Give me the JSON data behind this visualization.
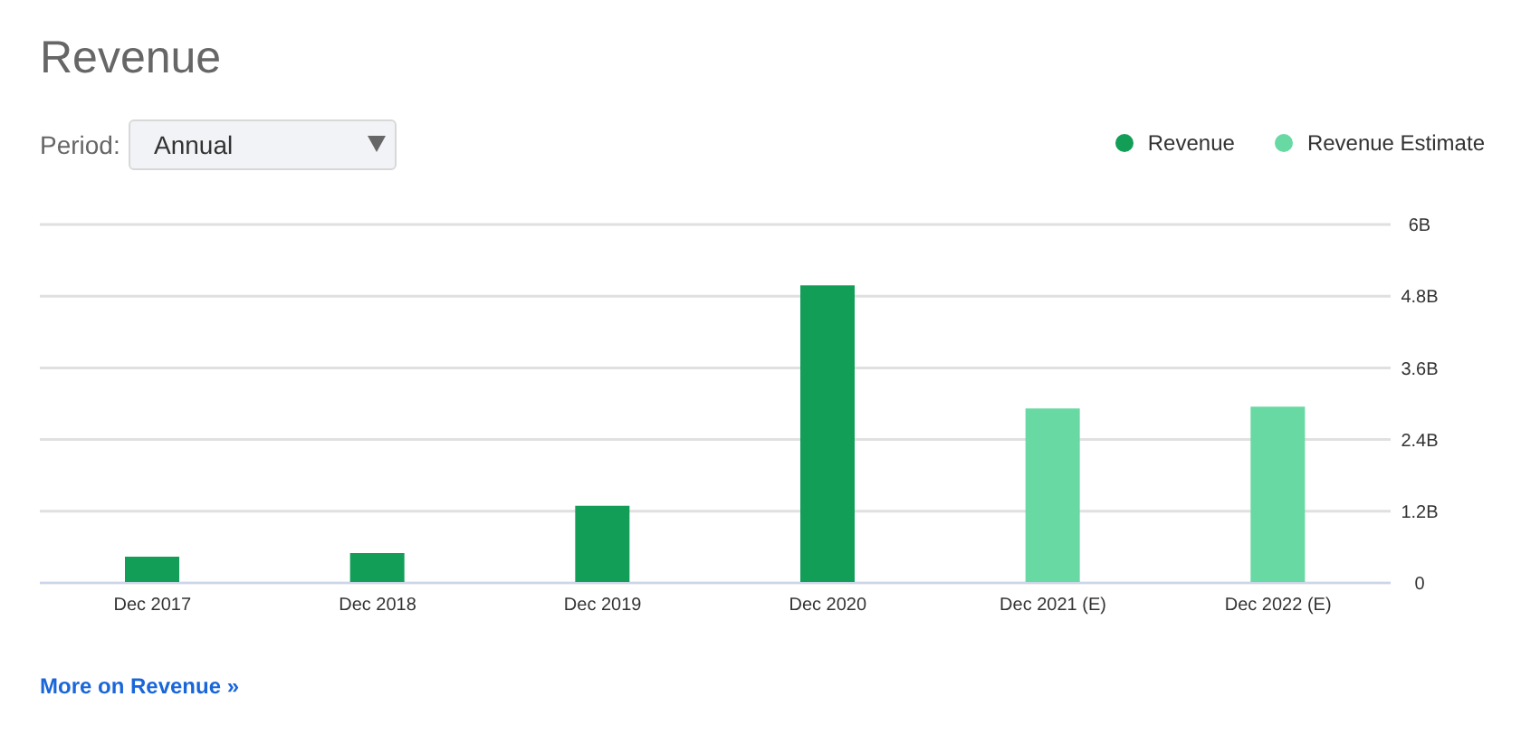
{
  "chart_data": {
    "type": "bar",
    "title": "Revenue",
    "categories": [
      "Dec 2017",
      "Dec 2018",
      "Dec 2019",
      "Dec 2020",
      "Dec 2021 (E)",
      "Dec 2022 (E)"
    ],
    "series": [
      {
        "name": "Revenue",
        "color": "#129e57",
        "values": [
          0.44,
          0.5,
          1.29,
          4.98,
          null,
          null
        ]
      },
      {
        "name": "Revenue Estimate",
        "color": "#68d9a2",
        "values": [
          null,
          null,
          null,
          null,
          2.92,
          2.95
        ]
      }
    ],
    "stacked": true,
    "ylim": [
      0,
      6
    ],
    "yticks": [
      0,
      {
        "value": 1.2,
        "label": "1.2B"
      },
      {
        "value": 2.4,
        "label": "2.4B"
      },
      {
        "value": 3.6,
        "label": "3.6B"
      },
      {
        "value": 4.8,
        "label": "4.8B"
      },
      {
        "value": 6,
        "label": "6B"
      }
    ],
    "grid": "y",
    "legend": "top right",
    "annotations": [
      "Period:",
      "Annual",
      "More on Revenue »"
    ]
  }
}
